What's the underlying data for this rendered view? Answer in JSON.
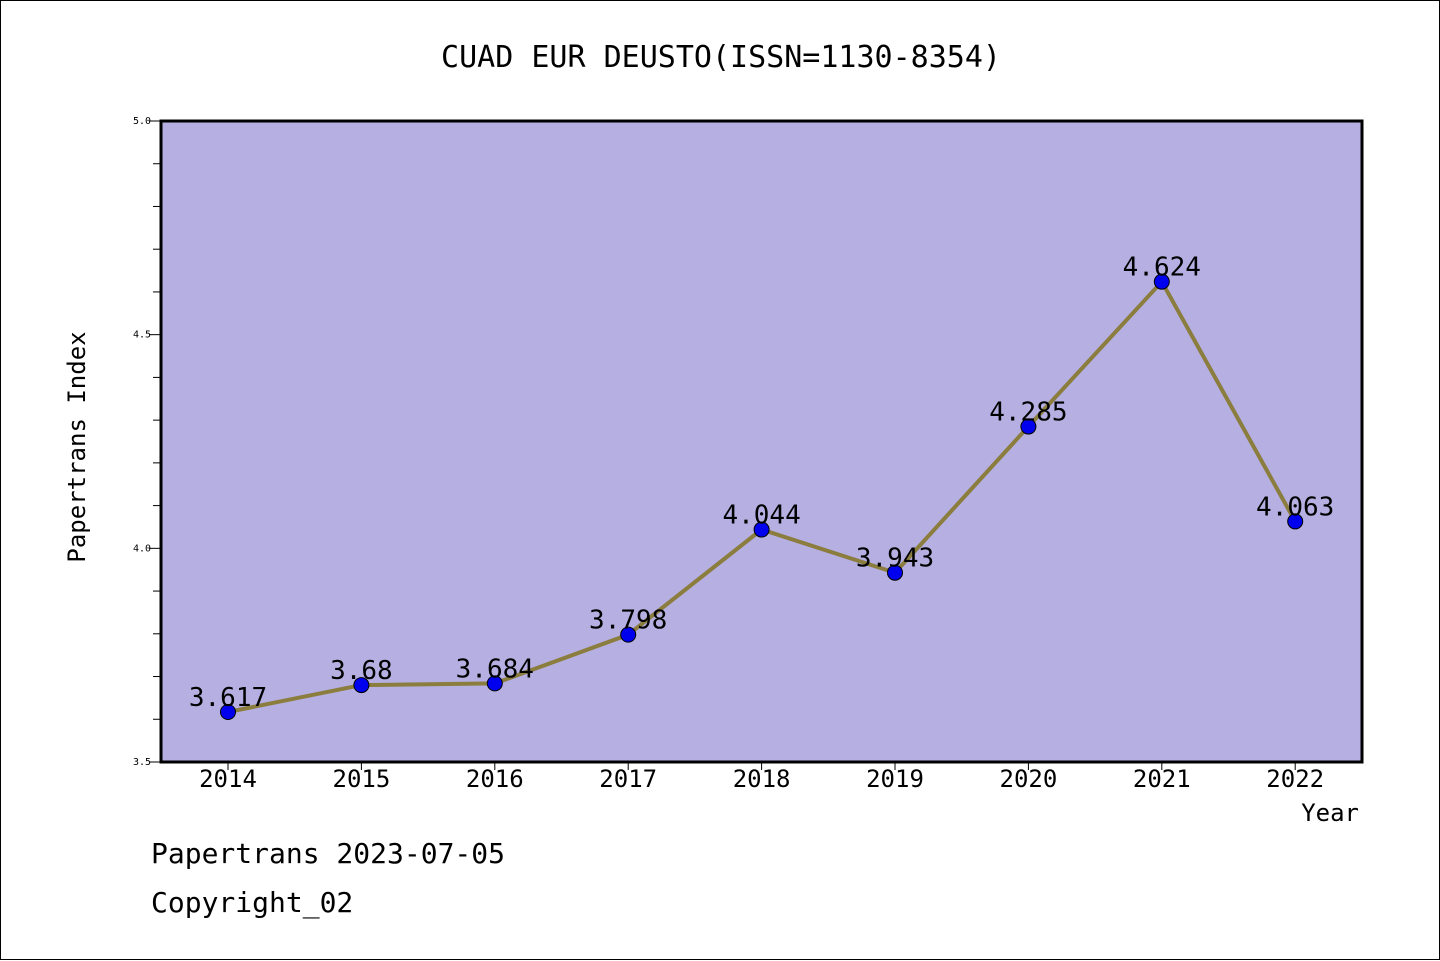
{
  "colors": {
    "plot_background": "#b5afe2",
    "line": "#8b7d3e",
    "marker": "#0000ee"
  },
  "chart_data": {
    "type": "line",
    "title": "CUAD EUR DEUSTO(ISSN=1130-8354)",
    "xlabel": "Year",
    "ylabel": "Papertrans Index",
    "categories": [
      "2014",
      "2015",
      "2016",
      "2017",
      "2018",
      "2019",
      "2020",
      "2021",
      "2022"
    ],
    "values": [
      3.617,
      3.68,
      3.684,
      3.798,
      4.044,
      3.943,
      4.285,
      4.624,
      4.063
    ],
    "data_labels": [
      "3.617",
      "3.68",
      "3.684",
      "3.798",
      "4.044",
      "3.943",
      "4.285",
      "4.624",
      "4.063"
    ],
    "ylim": [
      3.5,
      5.0
    ],
    "yticks": [
      "3.5",
      "4.0",
      "4.5",
      "5.0"
    ],
    "grid": false,
    "legend": "none"
  },
  "footer": {
    "date_line": "Papertrans 2023-07-05",
    "copyright": "Copyright_02"
  }
}
